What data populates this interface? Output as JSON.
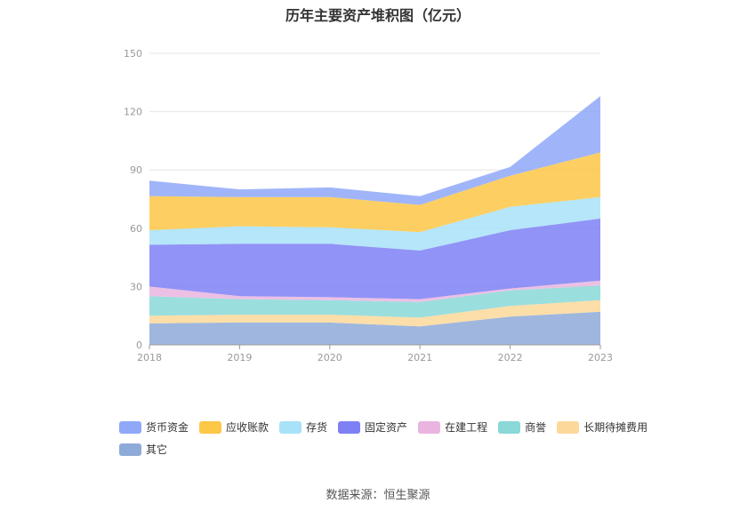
{
  "chart_data": {
    "type": "area",
    "stacked": true,
    "title": "历年主要资产堆积图（亿元）",
    "x": [
      "2018",
      "2019",
      "2020",
      "2021",
      "2022",
      "2023"
    ],
    "ylim": [
      0,
      150
    ],
    "yticks": [
      0,
      30,
      60,
      90,
      120,
      150
    ],
    "grid": true,
    "legend_position": "bottom",
    "series": [
      {
        "name": "其它",
        "color": "#8eaad8",
        "values": [
          11,
          11.5,
          11.5,
          9.5,
          14.5,
          17
        ]
      },
      {
        "name": "长期待摊费用",
        "color": "#fcd89a",
        "values": [
          4,
          4,
          4,
          4.5,
          5.5,
          6
        ]
      },
      {
        "name": "商誉",
        "color": "#8ad8d8",
        "values": [
          10,
          8,
          7.5,
          8,
          8,
          7.5
        ]
      },
      {
        "name": "在建工程",
        "color": "#e9b5e0",
        "values": [
          5,
          1.5,
          1.5,
          1.5,
          1,
          2.5
        ]
      },
      {
        "name": "固定资产",
        "color": "#7e80f4",
        "values": [
          21.5,
          27,
          27.5,
          25,
          30,
          32
        ]
      },
      {
        "name": "存货",
        "color": "#a8e2f8",
        "values": [
          7.5,
          9,
          8.5,
          9.5,
          12,
          11
        ]
      },
      {
        "name": "应收账款",
        "color": "#fdc748",
        "values": [
          17.5,
          15,
          15.5,
          14,
          16,
          23
        ]
      },
      {
        "name": "货币资金",
        "color": "#8fa8f8",
        "values": [
          8,
          4,
          5,
          4.5,
          4.5,
          29
        ]
      }
    ],
    "legend_order": [
      "货币资金",
      "应收账款",
      "存货",
      "固定资产",
      "在建工程",
      "商誉",
      "长期待摊费用",
      "其它"
    ]
  },
  "source_text": "数据来源：恒生聚源"
}
